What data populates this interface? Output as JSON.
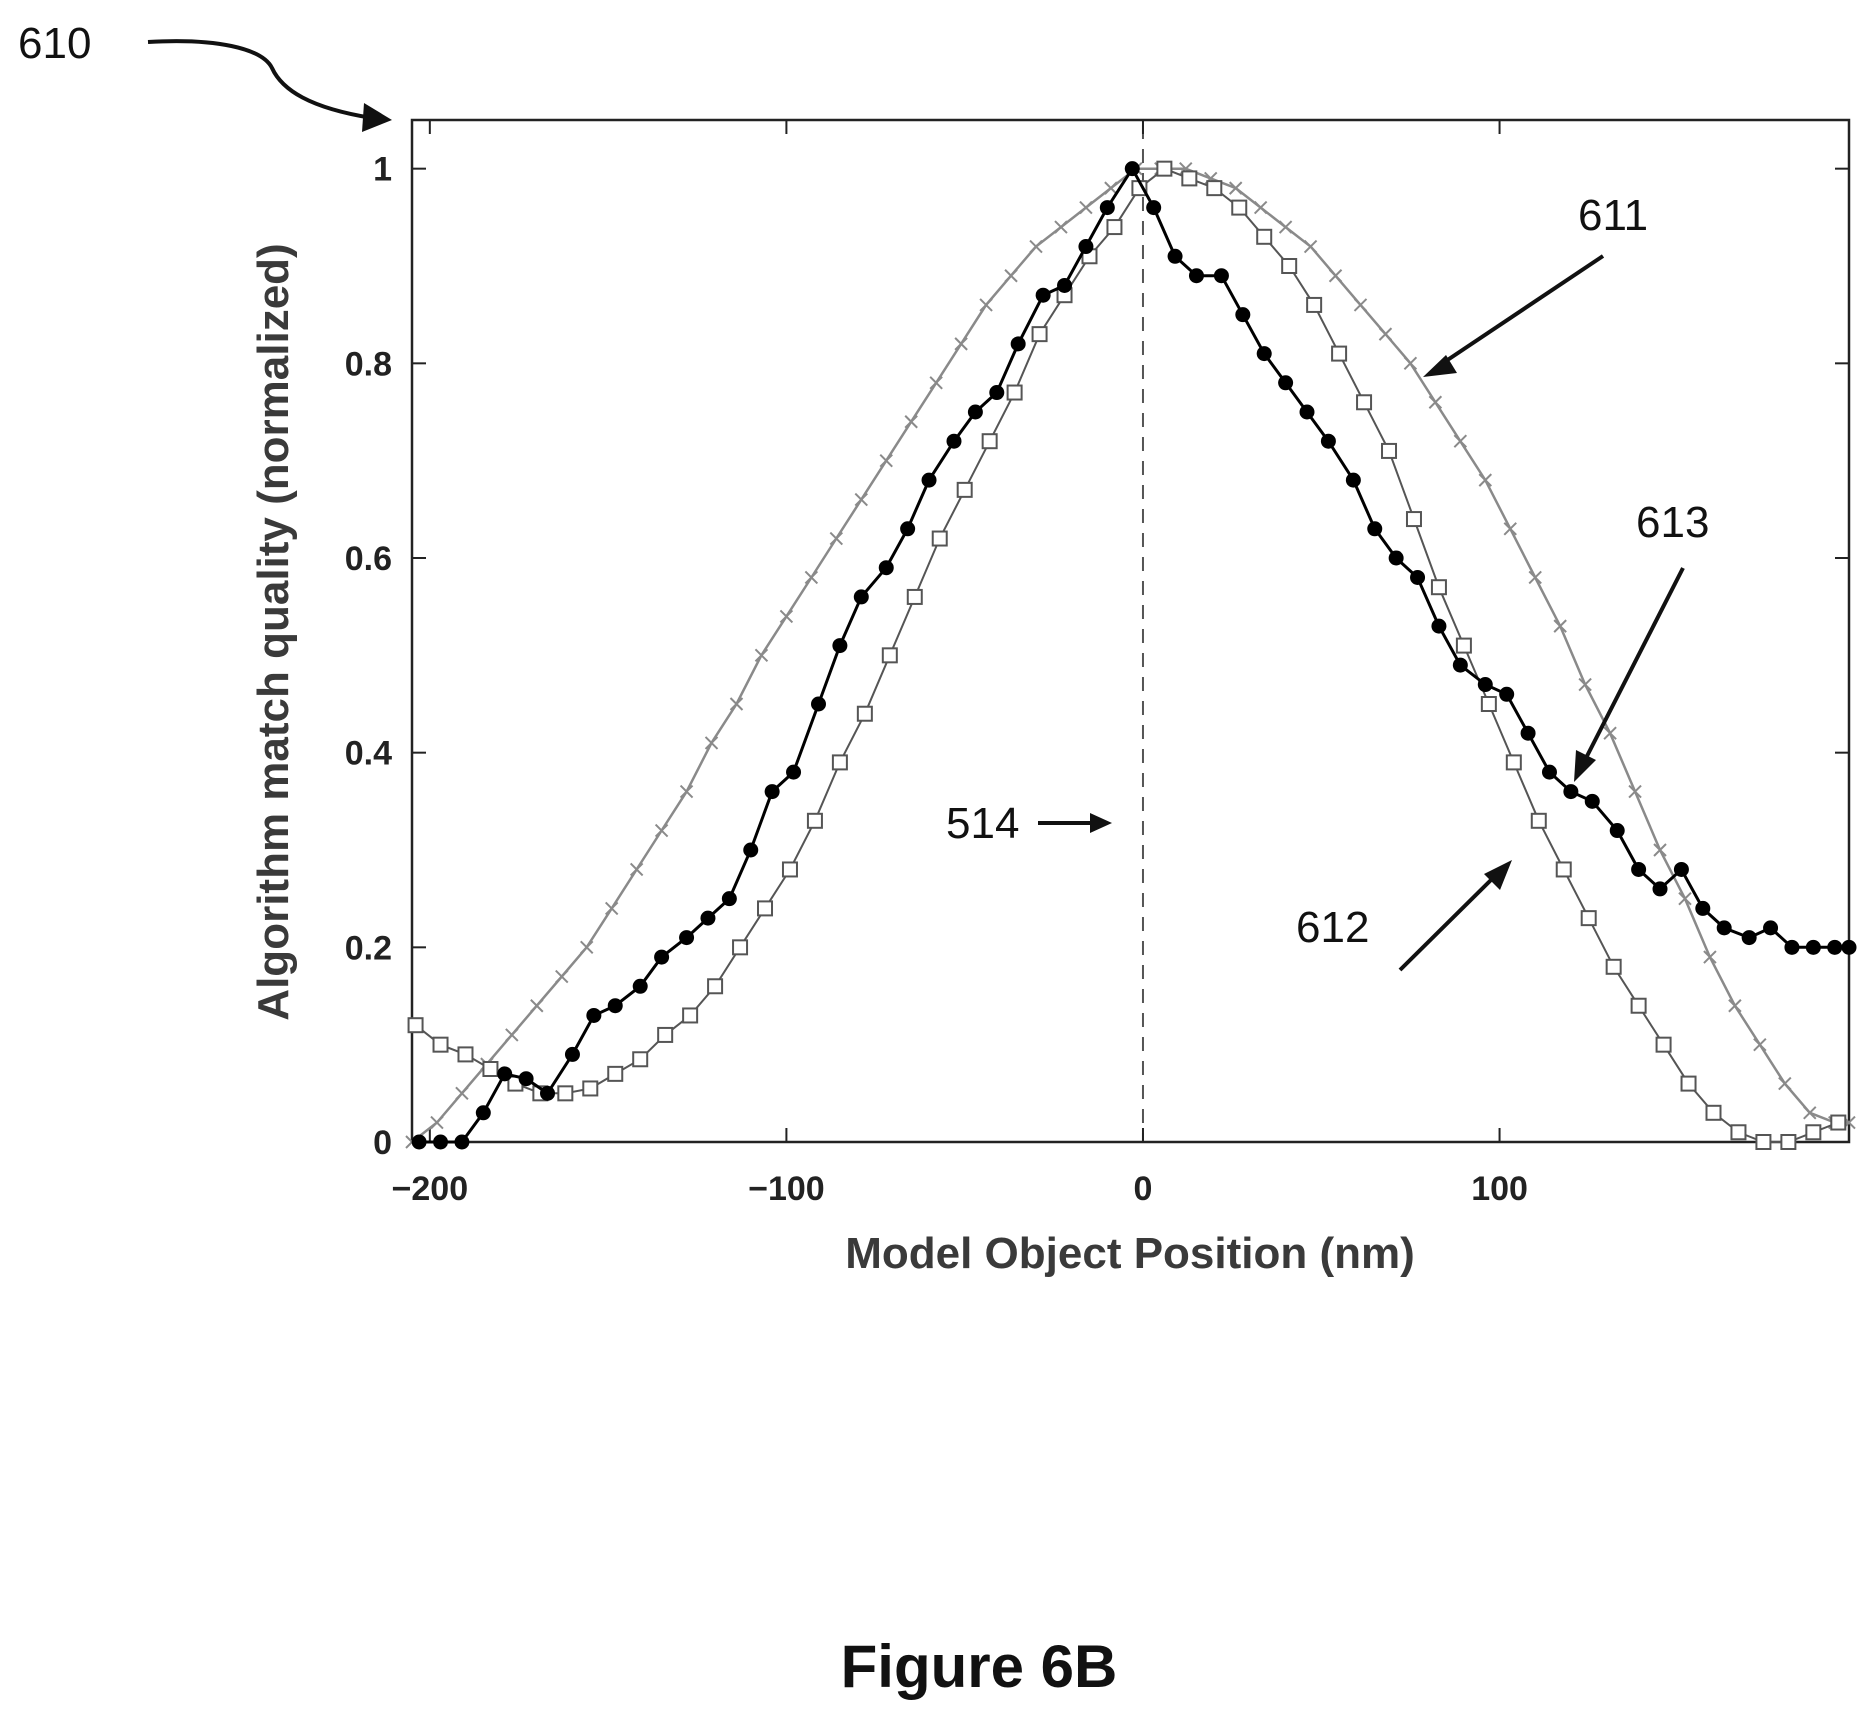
{
  "figure": {
    "caption": "Figure 6B",
    "ref_610": "610",
    "ref_611": "611",
    "ref_612": "612",
    "ref_613": "613",
    "ref_514": "514"
  },
  "chart_data": {
    "type": "line",
    "title": "",
    "xlabel": "Model Object Position (nm)",
    "ylabel": "Algorithm match quality (normalized)",
    "xlim": [
      -205,
      198
    ],
    "ylim": [
      0,
      1.05
    ],
    "xticks": [
      -200,
      -100,
      0,
      100
    ],
    "xtick_labels": [
      "−200",
      "−100",
      "0",
      "100"
    ],
    "yticks": [
      0,
      0.2,
      0.4,
      0.6,
      0.8,
      1
    ],
    "ytick_labels": [
      "0",
      "0.2",
      "0.4",
      "0.6",
      "0.8",
      "1"
    ],
    "grid": false,
    "reference_line_x": 0,
    "series": [
      {
        "marker": "x",
        "color": "#8a8a8a",
        "x": [
          -205,
          -198,
          -191,
          -184,
          -177,
          -170,
          -163,
          -156,
          -149,
          -142,
          -135,
          -128,
          -121,
          -114,
          -107,
          -100,
          -93,
          -86,
          -79,
          -72,
          -65,
          -58,
          -51,
          -44,
          -37,
          -30,
          -23,
          -16,
          -9,
          -2,
          5,
          12,
          19,
          26,
          33,
          40,
          47,
          54,
          61,
          68,
          75,
          82,
          89,
          96,
          103,
          110,
          117,
          124,
          131,
          138,
          145,
          152,
          159,
          166,
          173,
          180,
          187,
          194,
          198
        ],
        "y": [
          0.0,
          0.02,
          0.05,
          0.08,
          0.11,
          0.14,
          0.17,
          0.2,
          0.24,
          0.28,
          0.32,
          0.36,
          0.41,
          0.45,
          0.5,
          0.54,
          0.58,
          0.62,
          0.66,
          0.7,
          0.74,
          0.78,
          0.82,
          0.86,
          0.89,
          0.92,
          0.94,
          0.96,
          0.98,
          1.0,
          1.0,
          1.0,
          0.99,
          0.98,
          0.96,
          0.94,
          0.92,
          0.89,
          0.86,
          0.83,
          0.8,
          0.76,
          0.72,
          0.68,
          0.63,
          0.58,
          0.53,
          0.47,
          0.42,
          0.36,
          0.3,
          0.25,
          0.19,
          0.14,
          0.1,
          0.06,
          0.03,
          0.02,
          0.02
        ]
      },
      {
        "marker": "open-square",
        "color": "#555555",
        "x": [
          -204,
          -197,
          -190,
          -183,
          -176,
          -169,
          -162,
          -155,
          -148,
          -141,
          -134,
          -127,
          -120,
          -113,
          -106,
          -99,
          -92,
          -85,
          -78,
          -71,
          -64,
          -57,
          -50,
          -43,
          -36,
          -29,
          -22,
          -15,
          -8,
          -1,
          6,
          13,
          20,
          27,
          34,
          41,
          48,
          55,
          62,
          69,
          76,
          83,
          90,
          97,
          104,
          111,
          118,
          125,
          132,
          139,
          146,
          153,
          160,
          167,
          174,
          181,
          188,
          195
        ],
        "y": [
          0.12,
          0.1,
          0.09,
          0.075,
          0.06,
          0.05,
          0.05,
          0.055,
          0.07,
          0.085,
          0.11,
          0.13,
          0.16,
          0.2,
          0.24,
          0.28,
          0.33,
          0.39,
          0.44,
          0.5,
          0.56,
          0.62,
          0.67,
          0.72,
          0.77,
          0.83,
          0.87,
          0.91,
          0.94,
          0.98,
          1.0,
          0.99,
          0.98,
          0.96,
          0.93,
          0.9,
          0.86,
          0.81,
          0.76,
          0.71,
          0.64,
          0.57,
          0.51,
          0.45,
          0.39,
          0.33,
          0.28,
          0.23,
          0.18,
          0.14,
          0.1,
          0.06,
          0.03,
          0.01,
          0.0,
          0.0,
          0.01,
          0.02
        ]
      },
      {
        "marker": "filled-circle",
        "color": "#000000",
        "x": [
          -203,
          -197,
          -191,
          -185,
          -179,
          -173,
          -167,
          -160,
          -154,
          -148,
          -141,
          -135,
          -128,
          -122,
          -116,
          -110,
          -104,
          -98,
          -91,
          -85,
          -79,
          -72,
          -66,
          -60,
          -53,
          -47,
          -41,
          -35,
          -28,
          -22,
          -16,
          -10,
          -3,
          3,
          9,
          15,
          22,
          28,
          34,
          40,
          46,
          52,
          59,
          65,
          71,
          77,
          83,
          89,
          96,
          102,
          108,
          114,
          120,
          126,
          133,
          139,
          145,
          151,
          157,
          163,
          170,
          176,
          182,
          188,
          194,
          198
        ],
        "y": [
          0.0,
          0.0,
          0.0,
          0.03,
          0.07,
          0.065,
          0.05,
          0.09,
          0.13,
          0.14,
          0.16,
          0.19,
          0.21,
          0.23,
          0.25,
          0.3,
          0.36,
          0.38,
          0.45,
          0.51,
          0.56,
          0.59,
          0.63,
          0.68,
          0.72,
          0.75,
          0.77,
          0.82,
          0.87,
          0.88,
          0.92,
          0.96,
          1.0,
          0.96,
          0.91,
          0.89,
          0.89,
          0.85,
          0.81,
          0.78,
          0.75,
          0.72,
          0.68,
          0.63,
          0.6,
          0.58,
          0.53,
          0.49,
          0.47,
          0.46,
          0.42,
          0.38,
          0.36,
          0.35,
          0.32,
          0.28,
          0.26,
          0.28,
          0.24,
          0.22,
          0.21,
          0.22,
          0.2,
          0.2,
          0.2,
          0.2
        ]
      }
    ]
  }
}
